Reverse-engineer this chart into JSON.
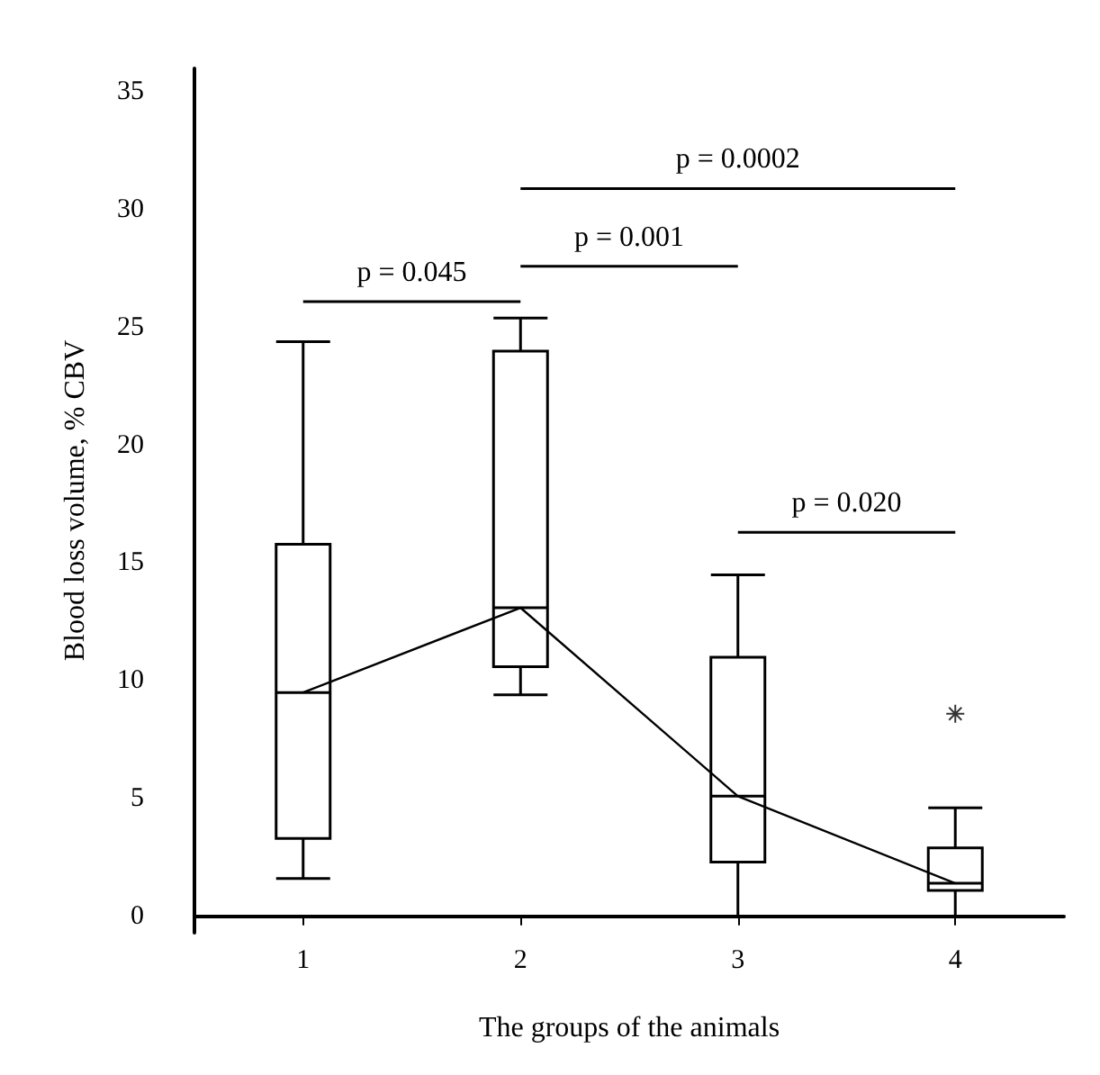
{
  "chart_data": {
    "type": "box",
    "xlabel": "The groups of the animals",
    "ylabel": "Blood loss volume, % CBV",
    "categories": [
      "1",
      "2",
      "3",
      "4"
    ],
    "ylim": [
      -0.7,
      36
    ],
    "yticks": [
      0,
      5,
      10,
      15,
      20,
      25,
      30,
      35
    ],
    "grid": false,
    "marker": "none",
    "line_style": "solid",
    "series": [
      {
        "color": "#000000",
        "boxes": [
          {
            "low": 1.6,
            "q1": 3.3,
            "median": 9.5,
            "q3": 15.8,
            "high": 24.4
          },
          {
            "low": 9.4,
            "q1": 10.6,
            "median": 13.1,
            "q3": 24.0,
            "high": 25.4
          },
          {
            "low": 0,
            "q1": 2.3,
            "median": 5.1,
            "q3": 11.0,
            "high": 14.5
          },
          {
            "low": 0,
            "q1": 1.1,
            "median": 1.4,
            "q3": 2.9,
            "high": 4.6,
            "outliers": [
              8.6
            ]
          }
        ]
      },
      {
        "type": "line",
        "color": "#000000",
        "values": [
          9.5,
          13.1,
          5.1,
          1.4
        ]
      }
    ],
    "annotations": [
      "p = 0.045",
      "p = 0.0002",
      "p = 0.001",
      "p = 0.020"
    ]
  }
}
